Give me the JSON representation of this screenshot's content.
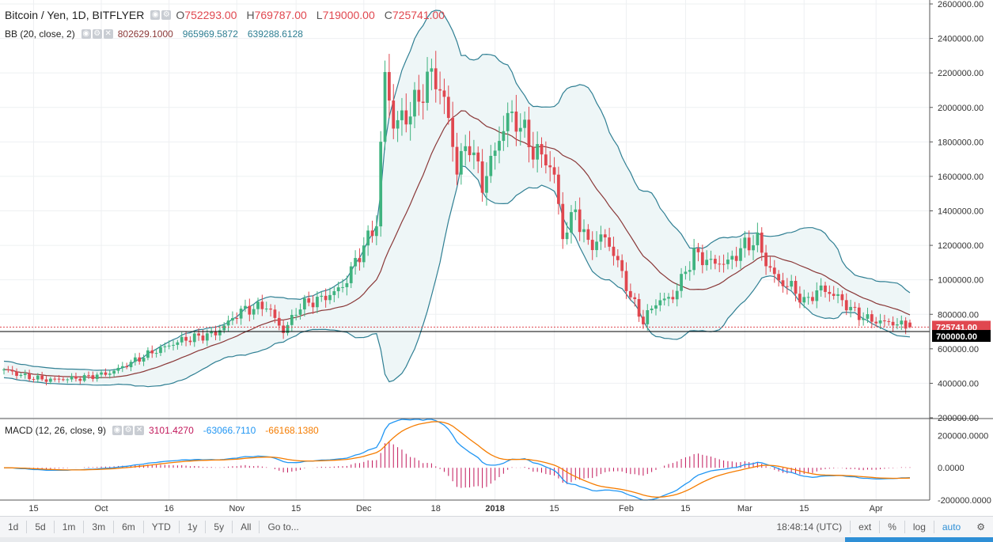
{
  "header": {
    "symbol": "Bitcoin / Yen, 1D, BITFLYER",
    "open_key": "O",
    "open": "752293.00",
    "high_key": "H",
    "high": "769787.00",
    "low_key": "L",
    "low": "719000.00",
    "close_key": "C",
    "close": "725741.00"
  },
  "bb_legend": {
    "label": "BB (20, close, 2)",
    "basis": "802629.1000",
    "upper": "965969.5872",
    "lower": "639288.6128"
  },
  "macd_legend": {
    "label": "MACD (12, 26, close, 9)",
    "hist": "3101.4270",
    "macd": "-63066.7110",
    "signal": "-66168.1380"
  },
  "toolbar": {
    "ranges": [
      "1d",
      "5d",
      "1m",
      "3m",
      "6m",
      "YTD",
      "1y",
      "5y",
      "All"
    ],
    "goto": "Go to...",
    "time": "18:48:14 (UTC)",
    "right_items": [
      "ext",
      "%",
      "log",
      "auto"
    ]
  },
  "colors": {
    "up": "#3fb37f",
    "down": "#e0474f",
    "band": "#2f7f93",
    "basis": "#8a3838",
    "fill": "#eef6f7",
    "macd": "#2196f3",
    "signal": "#f57c00",
    "hist": "#c2185b",
    "axis_text": "#333333"
  },
  "chart_data": [
    {
      "type": "candlestick",
      "title": "Bitcoin / Yen, 1D, BITFLYER",
      "ylim": [
        200000,
        2600000
      ],
      "yticks": [
        200000,
        400000,
        600000,
        800000,
        1000000,
        1200000,
        1400000,
        1600000,
        1800000,
        2000000,
        2200000,
        2400000,
        2600000
      ],
      "ytick_labels": [
        "200000.00",
        "400000.00",
        "600000.00",
        "800000.00",
        "1000000.00",
        "1200000.00",
        "1400000.00",
        "1600000.00",
        "1800000.00",
        "2000000.00",
        "2200000.00",
        "2400000.00",
        "2600000.00"
      ],
      "xticks": [
        {
          "label": "15",
          "i": 7
        },
        {
          "label": "Oct",
          "i": 23
        },
        {
          "label": "16",
          "i": 39
        },
        {
          "label": "Nov",
          "i": 55
        },
        {
          "label": "15",
          "i": 69
        },
        {
          "label": "Dec",
          "i": 85
        },
        {
          "label": "18",
          "i": 102
        },
        {
          "label": "2018",
          "i": 116
        },
        {
          "label": "15",
          "i": 130
        },
        {
          "label": "Feb",
          "i": 147
        },
        {
          "label": "15",
          "i": 161
        },
        {
          "label": "Mar",
          "i": 175
        },
        {
          "label": "15",
          "i": 189
        },
        {
          "label": "Apr",
          "i": 206
        }
      ],
      "price_labels": [
        {
          "text": "725741.00",
          "value": 725741,
          "kind": "last"
        },
        {
          "text": "700000.00",
          "value": 700000,
          "kind": "line"
        }
      ],
      "anchors": [
        [
          0,
          480000
        ],
        [
          5,
          440000
        ],
        [
          10,
          420000
        ],
        [
          18,
          430000
        ],
        [
          25,
          460000
        ],
        [
          30,
          520000
        ],
        [
          35,
          580000
        ],
        [
          42,
          650000
        ],
        [
          50,
          690000
        ],
        [
          56,
          820000
        ],
        [
          62,
          850000
        ],
        [
          66,
          700000
        ],
        [
          70,
          850000
        ],
        [
          76,
          900000
        ],
        [
          80,
          960000
        ],
        [
          84,
          1150000
        ],
        [
          88,
          1330000
        ],
        [
          90,
          2200000
        ],
        [
          92,
          1900000
        ],
        [
          95,
          1950000
        ],
        [
          98,
          2050000
        ],
        [
          101,
          2200000
        ],
        [
          104,
          2050000
        ],
        [
          107,
          1650000
        ],
        [
          110,
          1800000
        ],
        [
          113,
          1550000
        ],
        [
          116,
          1750000
        ],
        [
          119,
          1950000
        ],
        [
          122,
          1900000
        ],
        [
          125,
          1750000
        ],
        [
          128,
          1700000
        ],
        [
          130,
          1600000
        ],
        [
          132,
          1250000
        ],
        [
          135,
          1400000
        ],
        [
          138,
          1200000
        ],
        [
          142,
          1250000
        ],
        [
          145,
          1100000
        ],
        [
          148,
          900000
        ],
        [
          151,
          760000
        ],
        [
          154,
          870000
        ],
        [
          158,
          900000
        ],
        [
          163,
          1150000
        ],
        [
          167,
          1100000
        ],
        [
          171,
          1100000
        ],
        [
          175,
          1200000
        ],
        [
          178,
          1230000
        ],
        [
          180,
          1100000
        ],
        [
          183,
          990000
        ],
        [
          186,
          960000
        ],
        [
          189,
          870000
        ],
        [
          193,
          950000
        ],
        [
          197,
          900000
        ],
        [
          200,
          830000
        ],
        [
          203,
          780000
        ],
        [
          206,
          760000
        ],
        [
          210,
          750000
        ],
        [
          214,
          725741
        ]
      ],
      "count": 215,
      "bollinger": {
        "period": 20,
        "stddev": 2
      },
      "macd": {
        "fast": 12,
        "slow": 26,
        "signal": 9,
        "ylim": [
          -200000,
          300000
        ],
        "ytick_labels": [
          "200000.0000",
          "0.0000",
          "-200000.0000"
        ]
      }
    }
  ]
}
